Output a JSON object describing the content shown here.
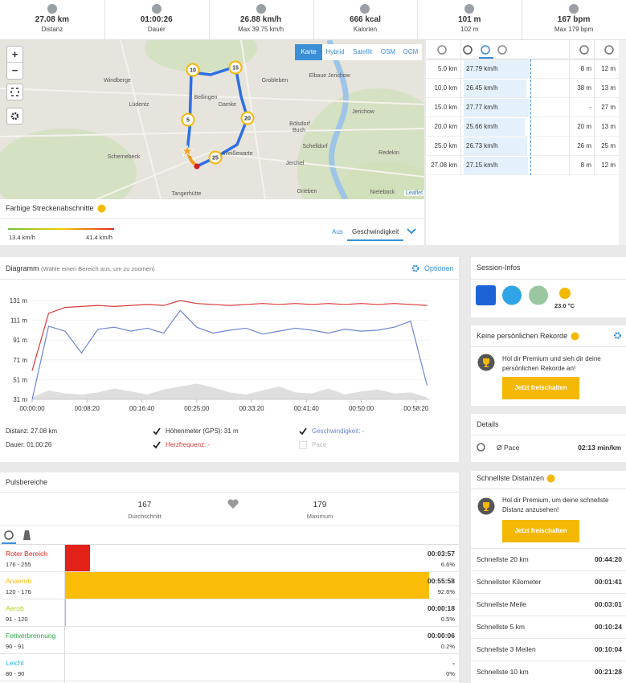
{
  "stats": [
    {
      "value": "27.08 km",
      "label": "Distanz"
    },
    {
      "value": "01:00:26",
      "label": "Dauer"
    },
    {
      "value": "26.88 km/h",
      "label": "Max 39.75 km/h"
    },
    {
      "value": "666 kcal",
      "label": "Kalorien"
    },
    {
      "value": "101 m",
      "label": "102 m"
    },
    {
      "value": "167 bpm",
      "label": "Max 179 bpm"
    }
  ],
  "map": {
    "layers": [
      "Karte",
      "Hybrid",
      "Satellit",
      "OSM",
      "OCM"
    ],
    "places": [
      "Windberge",
      "Lüdentz",
      "Bellingen",
      "Damke",
      "Grobleben",
      "Elbaue Jerichow",
      "Bölsdorf",
      "Buch",
      "Jerichow",
      "Schernebeck",
      "Weißewarte",
      "Schelldorf",
      "Jerchel",
      "Redekin",
      "Tangerhütte",
      "Grieben",
      "Nielebock"
    ],
    "markers": [
      "5",
      "10",
      "15",
      "20",
      "25"
    ],
    "attribution": "Leaflet",
    "zoom_in": "+",
    "zoom_out": "−"
  },
  "segments": {
    "title": "Farbige Streckenabschnitte",
    "min": "13.4 km/h",
    "max": "41.4 km/h",
    "options": [
      "Aus",
      "Geschwindigkeit"
    ]
  },
  "splits": {
    "rows": [
      {
        "distance": "5.0 km",
        "speed": 27.79,
        "speed_label": "27.79 km/h",
        "up": "8 m",
        "down": "12 m"
      },
      {
        "distance": "10.0 km",
        "speed": 26.45,
        "speed_label": "26.45 km/h",
        "up": "38 m",
        "down": "13 m"
      },
      {
        "distance": "15.0 km",
        "speed": 27.77,
        "speed_label": "27.77 km/h",
        "up": "-",
        "down": "27 m"
      },
      {
        "distance": "20.0 km",
        "speed": 25.66,
        "speed_label": "25.66 km/h",
        "up": "20 m",
        "down": "13 m"
      },
      {
        "distance": "25.0 km",
        "speed": 26.73,
        "speed_label": "26.73 km/h",
        "up": "26 m",
        "down": "25 m"
      },
      {
        "distance": "27.08 km",
        "speed": 27.15,
        "speed_label": "27.15 km/h",
        "up": "8 m",
        "down": "12 m"
      }
    ]
  },
  "chart_data": {
    "type": "line",
    "title": "Diagramm",
    "subtitle": "(Wähle einen Bereich aus, um zu zoomen)",
    "options": "Optionen",
    "grid": true,
    "xlim": [
      0,
      3626
    ],
    "ylim": [
      31,
      144
    ],
    "xticks": [
      {
        "value": 0,
        "label": "00:00:00"
      },
      {
        "value": 500,
        "label": "00:08:20"
      },
      {
        "value": 1000,
        "label": "00:16:40"
      },
      {
        "value": 1500,
        "label": "00:25:00"
      },
      {
        "value": 2000,
        "label": "00:33:20"
      },
      {
        "value": 2500,
        "label": "00:41:40"
      },
      {
        "value": 3000,
        "label": "00:50:00"
      },
      {
        "value": 3500,
        "label": "00:58:20"
      }
    ],
    "yticks": [
      {
        "value": 31,
        "label": "31 m"
      },
      {
        "value": 51,
        "label": "51 m"
      },
      {
        "value": 71,
        "label": "71 m"
      },
      {
        "value": 91,
        "label": "91 m"
      },
      {
        "value": 111,
        "label": "111 m"
      },
      {
        "value": 131,
        "label": "131 m"
      }
    ],
    "x": [
      0,
      150,
      300,
      450,
      600,
      750,
      900,
      1050,
      1200,
      1350,
      1500,
      1650,
      1800,
      1950,
      2100,
      2250,
      2400,
      2550,
      2700,
      2850,
      3000,
      3150,
      3300,
      3450,
      3600
    ],
    "series": [
      {
        "name": "Höhenmeter (GPS): 31 m",
        "color": "#c8c8c8",
        "area": true,
        "values": [
          33,
          40,
          37,
          36,
          38,
          42,
          39,
          36,
          41,
          44,
          47,
          43,
          38,
          36,
          40,
          44,
          38,
          37,
          42,
          36,
          39,
          41,
          37,
          38,
          33
        ]
      },
      {
        "name": "Herzfrequenz: -",
        "color": "#d9393b",
        "values": [
          60,
          118,
          124,
          125,
          126,
          125,
          126,
          127,
          126,
          131,
          128,
          127,
          126,
          127,
          128,
          127,
          128,
          127,
          128,
          127,
          128,
          127,
          128,
          127,
          126
        ]
      },
      {
        "name": "Geschwindigkeit: -",
        "color": "#6a86cf",
        "values": [
          31,
          105,
          100,
          78,
          102,
          104,
          100,
          103,
          98,
          121,
          104,
          98,
          101,
          103,
          97,
          100,
          103,
          101,
          98,
          102,
          100,
          101,
          104,
          110,
          45
        ]
      }
    ],
    "pace_label": "Pace",
    "info": [
      "Distanz: 27.08 km",
      "Dauer: 01:00:26"
    ]
  },
  "pulse": {
    "title": "Pulsbereiche",
    "avg": "167",
    "avg_label": "Durchschnitt",
    "max": "179",
    "max_label": "Maximum",
    "zones": [
      {
        "name": "Roter Bereich",
        "range": "176 - 255",
        "time": "00:03:57",
        "percent": 6.6,
        "percent_label": "6.6%",
        "color": "#e32119"
      },
      {
        "name": "Anaerob",
        "range": "120 - 176",
        "time": "00:55:58",
        "percent": 92.6,
        "percent_label": "92.6%",
        "color": "#fbbd08"
      },
      {
        "name": "Aerob",
        "range": "91 - 120",
        "time": "00:00:18",
        "percent": 0.5,
        "percent_label": "0.5%",
        "color": "#b9cf1d"
      },
      {
        "name": "Fettverbrennung",
        "range": "90 - 91",
        "time": "00:00:06",
        "percent": 0.2,
        "percent_label": "0.2%",
        "color": "#2aa845"
      },
      {
        "name": "Leicht",
        "range": "80 - 90",
        "time": "-",
        "percent": 0,
        "percent_label": "0%",
        "color": "#22b6dc"
      }
    ]
  },
  "session": {
    "title": "Session-Infos",
    "temperature": "23.0 °C"
  },
  "records": {
    "title": "Keine persönlichen Rekorde",
    "text": "Hol dir Premium und sieh dir deine persönlichen Rekorde an!",
    "button": "Jetzt freischalten"
  },
  "details": {
    "title": "Details",
    "label": "Ø Pace",
    "value": "02:13 min/km"
  },
  "fastest": {
    "title": "Schnellste Distanzen",
    "text": "Hol dir Premium, um deine schnellste Distanz anzusehen!",
    "button": "Jetzt freischalten",
    "rows": [
      [
        "Schnellste 20 km",
        "00:44:20"
      ],
      [
        "Schnellster Kilometer",
        "00:01:41"
      ],
      [
        "Schnellste Meile",
        "00:03:01"
      ],
      [
        "Schnellste 5 km",
        "00:10:24"
      ],
      [
        "Schnellste 3 Meilen",
        "00:10:04"
      ],
      [
        "Schnellste 10 km",
        "00:21:28"
      ]
    ]
  }
}
